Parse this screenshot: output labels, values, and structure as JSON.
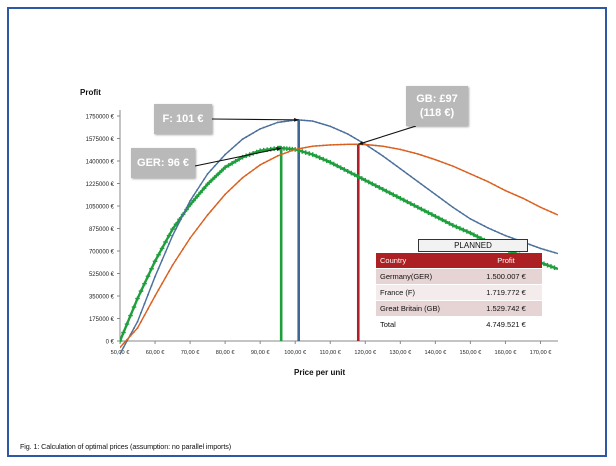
{
  "caption": "Fig. 1: Calculation of optimal prices (assumption: no parallel imports)",
  "chart_data": {
    "type": "line",
    "ylabel": "Profit",
    "xlabel": "Price per unit",
    "xlim": [
      50,
      175
    ],
    "ylim": [
      0,
      1750000
    ],
    "yticks": [
      "0 €",
      "175000 €",
      "350000 €",
      "525000 €",
      "700000 €",
      "875000 €",
      "1050000 €",
      "1225000 €",
      "1400000 €",
      "1575000 €",
      "1750000 €"
    ],
    "xticks": [
      "50,00 €",
      "60,00 €",
      "70,00 €",
      "80,00 €",
      "90,00 €",
      "100,00 €",
      "110,00 €",
      "120,00 €",
      "130,00 €",
      "140,00 €",
      "150,00 €",
      "160,00 €",
      "170,00 €"
    ],
    "series": [
      {
        "name": "GER",
        "color": "#1e9e3c",
        "marker": "star",
        "x": [
          50,
          55,
          60,
          65,
          70,
          75,
          80,
          85,
          90,
          95,
          96,
          100,
          105,
          110,
          115,
          120,
          125,
          130,
          135,
          140,
          145,
          150,
          155,
          160,
          165,
          170,
          175
        ],
        "y": [
          0,
          330000,
          620000,
          870000,
          1060000,
          1220000,
          1350000,
          1430000,
          1480000,
          1500000,
          1500007,
          1490000,
          1450000,
          1390000,
          1320000,
          1250000,
          1180000,
          1110000,
          1040000,
          970000,
          900000,
          840000,
          770000,
          710000,
          660000,
          610000,
          560000
        ]
      },
      {
        "name": "F",
        "color": "#4a6f9c",
        "marker": "dot",
        "x": [
          50,
          55,
          60,
          65,
          70,
          75,
          80,
          85,
          90,
          95,
          100,
          101,
          105,
          110,
          115,
          120,
          125,
          130,
          135,
          140,
          145,
          150,
          155,
          160,
          165,
          170,
          175
        ],
        "y": [
          -100000,
          150000,
          500000,
          820000,
          1090000,
          1300000,
          1450000,
          1570000,
          1650000,
          1700000,
          1719000,
          1719772,
          1710000,
          1670000,
          1610000,
          1530000,
          1440000,
          1340000,
          1240000,
          1140000,
          1040000,
          950000,
          880000,
          820000,
          770000,
          720000,
          680000
        ]
      },
      {
        "name": "GB",
        "color": "#d9601f",
        "marker": "dot",
        "x": [
          50,
          55,
          60,
          65,
          70,
          75,
          80,
          85,
          90,
          95,
          100,
          105,
          110,
          115,
          118,
          120,
          125,
          130,
          135,
          140,
          145,
          150,
          155,
          160,
          165,
          170,
          175
        ],
        "y": [
          -50000,
          100000,
          350000,
          590000,
          800000,
          980000,
          1140000,
          1270000,
          1370000,
          1440000,
          1490000,
          1515000,
          1525000,
          1529500,
          1529742,
          1528000,
          1515000,
          1490000,
          1455000,
          1410000,
          1360000,
          1300000,
          1240000,
          1170000,
          1110000,
          1040000,
          980000
        ]
      }
    ],
    "optima": [
      {
        "series": "GER",
        "x": 96,
        "color": "#1e9e3c"
      },
      {
        "series": "F",
        "x": 101,
        "color": "#3e6796"
      },
      {
        "series": "GB",
        "x": 118,
        "color": "#ae1f2a"
      }
    ],
    "annotations": [
      {
        "text": "GER: 96 €",
        "series": "GER"
      },
      {
        "text": "F: 101 €",
        "series": "F"
      },
      {
        "text": "GB: £97",
        "text2": "(118 €)",
        "series": "GB"
      }
    ]
  },
  "table": {
    "title": "PLANNED",
    "headers": [
      "Country",
      "Profit"
    ],
    "rows": [
      {
        "country": "Germany(GER)",
        "profit": "1.500.007 €"
      },
      {
        "country": "France (F)",
        "profit": "1.719.772 €"
      },
      {
        "country": "Great Britain (GB)",
        "profit": "1.529.742 €"
      }
    ],
    "total": {
      "label": "Total",
      "profit": "4.749.521 €"
    }
  }
}
